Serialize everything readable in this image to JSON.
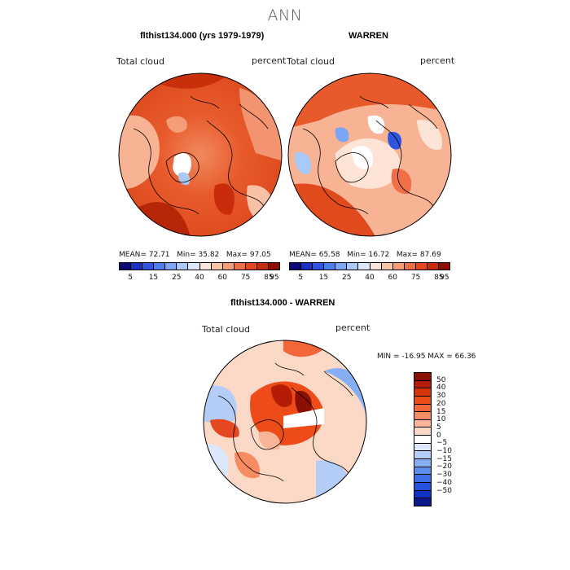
{
  "title": "ANN",
  "panels": [
    {
      "title": "flthist134.000 (yrs 1979-1979)",
      "variable": "Total cloud",
      "units": "percent",
      "stats": {
        "mean_label": "MEAN=",
        "mean": "72.71",
        "min_label": "Min=",
        "min": "35.82",
        "max_label": "Max=",
        "max": "97.05"
      }
    },
    {
      "title": "WARREN",
      "variable": "Total cloud",
      "units": "percent",
      "stats": {
        "mean_label": "MEAN=",
        "mean": "65.58",
        "min_label": "Min=",
        "min": "16.72",
        "max_label": "Max=",
        "max": "87.69"
      }
    },
    {
      "title": "flthist134.000 - WARREN",
      "variable": "Total cloud",
      "units": "percent",
      "minmax": "MIN = -16.95  MAX =  66.36"
    }
  ],
  "colorbar_abs": {
    "colors": [
      "#0a0a78",
      "#1d2fbf",
      "#2f55e0",
      "#4e7ef0",
      "#7aa6f5",
      "#a9c9f7",
      "#d9e8fb",
      "#fbe5d8",
      "#f9c3a6",
      "#f59c78",
      "#ef7048",
      "#e54720",
      "#c92c0a",
      "#8c0f03"
    ],
    "labels": [
      "5",
      "15",
      "25",
      "40",
      "60",
      "75",
      "85",
      "95"
    ]
  },
  "colorbar_diff": {
    "colors": [
      "#8c0f03",
      "#b51c05",
      "#d93308",
      "#ed4b18",
      "#f2663a",
      "#f78c63",
      "#fab598",
      "#fcd9c6",
      "#ffffff",
      "#dbe8fb",
      "#b4cdf7",
      "#86aef2",
      "#5d8ff0",
      "#3f6fe8",
      "#2551dc",
      "#1132c4",
      "#0a1a8c"
    ],
    "labels": [
      "50",
      "40",
      "30",
      "20",
      "15",
      "10",
      "5",
      "0",
      "−5",
      "−10",
      "−15",
      "−20",
      "−30",
      "−40",
      "−50"
    ]
  }
}
